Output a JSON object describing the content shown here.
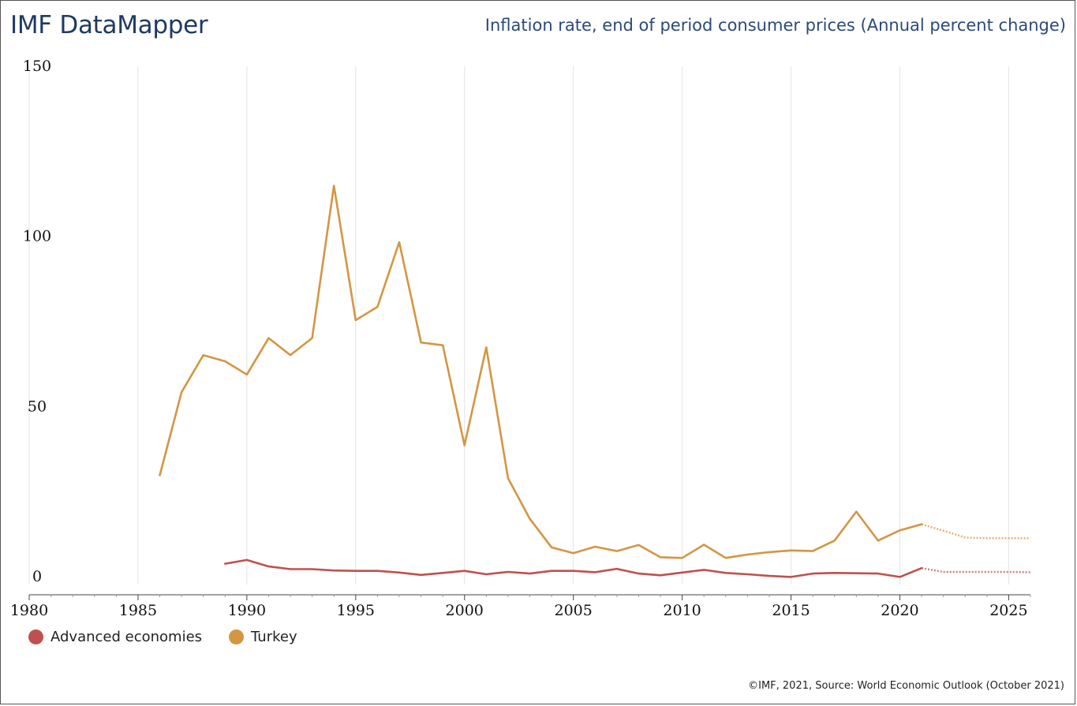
{
  "header": {
    "brand": "IMF DataMapper",
    "title": "Inflation rate, end of period consumer prices (Annual percent change)"
  },
  "footer": {
    "source": "©IMF, 2021, Source: World Economic Outlook (October 2021)"
  },
  "chart_data": {
    "type": "line",
    "title": "Inflation rate, end of period consumer prices (Annual percent change)",
    "xlabel": "",
    "ylabel": "",
    "xlim": [
      1980,
      2026
    ],
    "ylim": [
      0,
      150
    ],
    "x_ticks": [
      1980,
      1985,
      1990,
      1995,
      2000,
      2005,
      2010,
      2015,
      2020,
      2025
    ],
    "y_ticks": [
      0,
      50,
      100,
      150
    ],
    "grid": "vertical",
    "legend_position": "bottom-left",
    "forecast_start": 2021,
    "series": [
      {
        "name": "Advanced economies",
        "color": "#c0504d",
        "x": [
          1989,
          1990,
          1991,
          1992,
          1993,
          1994,
          1995,
          1996,
          1997,
          1998,
          1999,
          2000,
          2001,
          2002,
          2003,
          2004,
          2005,
          2006,
          2007,
          2008,
          2009,
          2010,
          2011,
          2012,
          2013,
          2014,
          2015,
          2016,
          2017,
          2018,
          2019,
          2020,
          2021,
          2022,
          2023,
          2024,
          2025,
          2026
        ],
        "values": [
          3.8,
          4.9,
          3.0,
          2.2,
          2.2,
          1.8,
          1.7,
          1.7,
          1.2,
          0.5,
          1.1,
          1.7,
          0.7,
          1.4,
          0.9,
          1.7,
          1.7,
          1.3,
          2.3,
          0.9,
          0.4,
          1.2,
          2.0,
          1.1,
          0.7,
          0.2,
          -0.1,
          0.9,
          1.1,
          1.0,
          0.9,
          -0.1,
          2.5,
          1.4,
          1.4,
          1.4,
          1.4,
          1.3
        ]
      },
      {
        "name": "Turkey",
        "color": "#d39643",
        "x": [
          1986,
          1987,
          1988,
          1989,
          1990,
          1991,
          1992,
          1993,
          1994,
          1995,
          1996,
          1997,
          1998,
          1999,
          2000,
          2001,
          2002,
          2003,
          2004,
          2005,
          2006,
          2007,
          2008,
          2009,
          2010,
          2011,
          2012,
          2013,
          2014,
          2015,
          2016,
          2017,
          2018,
          2019,
          2020,
          2021,
          2022,
          2023,
          2024,
          2025,
          2026
        ],
        "values": [
          29.8,
          54.2,
          65.1,
          63.3,
          59.4,
          70.1,
          65.1,
          70.1,
          114.9,
          75.4,
          79.3,
          98.3,
          68.8,
          68.0,
          38.6,
          67.4,
          28.9,
          17.0,
          8.6,
          6.9,
          8.8,
          7.5,
          9.3,
          5.7,
          5.5,
          9.4,
          5.5,
          6.5,
          7.2,
          7.7,
          7.5,
          10.6,
          19.1,
          10.6,
          13.6,
          15.4,
          13.5,
          11.5,
          11.3,
          11.3,
          11.3
        ]
      }
    ]
  }
}
